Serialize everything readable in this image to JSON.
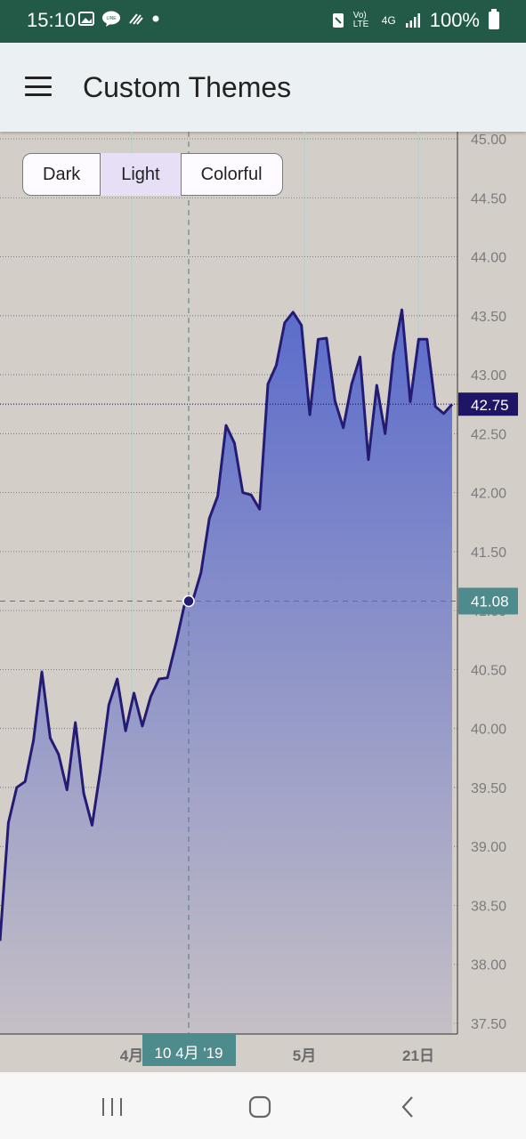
{
  "status": {
    "time": "15:10",
    "battery": "100%",
    "network": "4G",
    "volte": "Vo) LTE"
  },
  "app": {
    "title": "Custom Themes"
  },
  "themes": {
    "dark": "Dark",
    "light": "Light",
    "colorful": "Colorful",
    "selected": "Light"
  },
  "colors": {
    "background": "#d4cec9",
    "line": "#241c74",
    "area_top": "#5b6ccb",
    "area_bottom": "#c5bfc6",
    "status_bar": "#235a47",
    "crosshair_label": "#4e8b8c",
    "last_price_label": "#1d1566"
  },
  "chart_data": {
    "type": "area",
    "ylim": [
      37.5,
      45.0
    ],
    "y_ticks": [
      "45.00",
      "44.50",
      "44.00",
      "43.50",
      "43.00",
      "42.50",
      "42.00",
      "41.50",
      "41.00",
      "40.50",
      "40.00",
      "39.50",
      "39.00",
      "38.50",
      "38.00",
      "37.50"
    ],
    "x_ticks": [
      "4月",
      "5月",
      "21日"
    ],
    "crosshair": {
      "x_label": "10 4月 '19",
      "y_label": "41.08"
    },
    "last_price": "42.75",
    "values": [
      38.2,
      39.2,
      39.5,
      39.55,
      39.9,
      40.48,
      39.92,
      39.78,
      39.48,
      40.05,
      39.45,
      39.18,
      39.65,
      40.2,
      40.42,
      39.98,
      40.3,
      40.02,
      40.27,
      40.42,
      40.43,
      40.72,
      41.04,
      41.08,
      41.32,
      41.78,
      41.97,
      42.57,
      42.42,
      42.0,
      41.98,
      41.86,
      42.92,
      43.08,
      43.44,
      43.53,
      43.42,
      42.66,
      43.3,
      43.31,
      42.78,
      42.55,
      42.92,
      43.15,
      42.28,
      42.91,
      42.5,
      43.17,
      43.55,
      42.77,
      43.3,
      43.3,
      42.73,
      42.67,
      42.75
    ]
  },
  "navigation": {
    "recents": "recents-icon",
    "home": "home-icon",
    "back": "back-icon"
  }
}
